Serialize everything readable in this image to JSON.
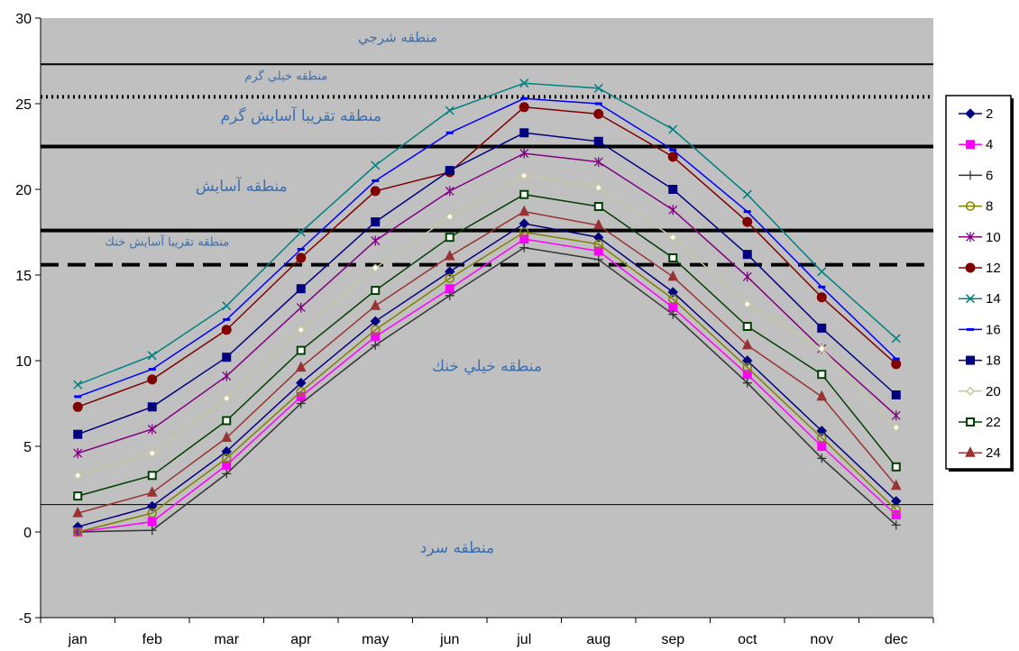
{
  "chart_data": {
    "type": "line",
    "title": "",
    "xlabel": "",
    "ylabel": "",
    "categories": [
      "jan",
      "feb",
      "mar",
      "apr",
      "may",
      "jun",
      "jul",
      "aug",
      "sep",
      "oct",
      "nov",
      "dec"
    ],
    "ylim": [
      -5,
      30
    ],
    "yticks": [
      -5,
      0,
      5,
      10,
      15,
      20,
      25,
      30
    ],
    "grid": false,
    "legend_position": "right",
    "plot_background": "#c0c0c0",
    "series": [
      {
        "name": "2",
        "color": "#000080",
        "marker": "diamond",
        "values": [
          0.3,
          1.5,
          4.7,
          8.7,
          12.3,
          15.2,
          18.0,
          17.2,
          14.0,
          10.0,
          5.9,
          1.8
        ]
      },
      {
        "name": "4",
        "color": "#ff00ff",
        "marker": "square",
        "values": [
          0.0,
          0.6,
          3.9,
          7.9,
          11.4,
          14.2,
          17.1,
          16.4,
          13.1,
          9.2,
          5.0,
          1.0
        ]
      },
      {
        "name": "6",
        "color": "#333333",
        "marker": "plus",
        "values": [
          0.0,
          0.1,
          3.4,
          7.5,
          10.9,
          13.8,
          16.6,
          15.9,
          12.7,
          8.7,
          4.3,
          0.4
        ]
      },
      {
        "name": "8",
        "color": "#808000",
        "marker": "circle-open",
        "values": [
          0.0,
          1.1,
          4.3,
          8.2,
          11.8,
          14.8,
          17.5,
          16.8,
          13.6,
          9.6,
          5.5,
          1.3
        ]
      },
      {
        "name": "10",
        "color": "#800080",
        "marker": "star",
        "values": [
          4.6,
          6.0,
          9.1,
          13.1,
          17.0,
          19.9,
          22.1,
          21.6,
          18.8,
          14.9,
          10.7,
          6.8
        ]
      },
      {
        "name": "12",
        "color": "#800000",
        "marker": "circle",
        "values": [
          7.3,
          8.9,
          11.8,
          16.0,
          19.9,
          21.0,
          24.8,
          24.4,
          21.9,
          18.1,
          13.7,
          9.8
        ]
      },
      {
        "name": "14",
        "color": "#008080",
        "marker": "x",
        "values": [
          8.6,
          10.3,
          13.2,
          17.5,
          21.4,
          24.6,
          26.2,
          25.9,
          23.5,
          19.7,
          15.2,
          11.3
        ]
      },
      {
        "name": "16",
        "color": "#0000ff",
        "marker": "dash",
        "values": [
          7.9,
          9.5,
          12.4,
          16.5,
          20.5,
          23.3,
          25.3,
          25.0,
          22.3,
          18.7,
          14.3,
          10.1
        ]
      },
      {
        "name": "18",
        "color": "#000080",
        "marker": "square",
        "values": [
          5.7,
          7.3,
          10.2,
          14.2,
          18.1,
          21.1,
          23.3,
          22.8,
          20.0,
          16.2,
          11.9,
          8.0
        ]
      },
      {
        "name": "20",
        "color": "#c8c8a0",
        "marker": "diamond-open",
        "values": [
          3.3,
          4.6,
          7.8,
          11.8,
          15.4,
          18.4,
          20.8,
          20.1,
          17.2,
          13.3,
          10.7,
          6.1
        ]
      },
      {
        "name": "22",
        "color": "#004000",
        "marker": "square-open",
        "values": [
          2.1,
          3.3,
          6.5,
          10.6,
          14.1,
          17.2,
          19.7,
          19.0,
          16.0,
          12.0,
          9.2,
          3.8
        ]
      },
      {
        "name": "24",
        "color": "#993333",
        "marker": "triangle",
        "values": [
          1.1,
          2.3,
          5.5,
          9.6,
          13.2,
          16.1,
          18.7,
          17.9,
          14.9,
          10.9,
          7.9,
          2.7
        ]
      }
    ],
    "reference_lines": [
      {
        "y": 27.3,
        "style": "solid",
        "weight": 2
      },
      {
        "y": 25.4,
        "style": "dotted",
        "weight": 4
      },
      {
        "y": 22.5,
        "style": "solid",
        "weight": 4
      },
      {
        "y": 17.6,
        "style": "solid",
        "weight": 4
      },
      {
        "y": 15.6,
        "style": "dashed",
        "weight": 4
      },
      {
        "y": 1.6,
        "style": "solid",
        "weight": 1
      }
    ],
    "zone_labels": [
      {
        "text": "منطقه شرجي",
        "x_cat": 4.3,
        "y": 28.6,
        "size": 15
      },
      {
        "text": "منطقه خيلي گرم",
        "x_cat": 2.8,
        "y": 26.4,
        "size": 13
      },
      {
        "text": "منطقه تقريبا آسايش گرم",
        "x_cat": 3.0,
        "y": 24.0,
        "size": 17
      },
      {
        "text": "منطقه آسايش",
        "x_cat": 2.2,
        "y": 19.9,
        "size": 17
      },
      {
        "text": "منطقه تقريبا آسايش خنك",
        "x_cat": 1.2,
        "y": 16.7,
        "size": 13
      },
      {
        "text": "منطقه خيلي خنك",
        "x_cat": 5.5,
        "y": 9.4,
        "size": 17
      },
      {
        "text": "منطقه سرد",
        "x_cat": 5.1,
        "y": -1.2,
        "size": 17
      }
    ]
  }
}
